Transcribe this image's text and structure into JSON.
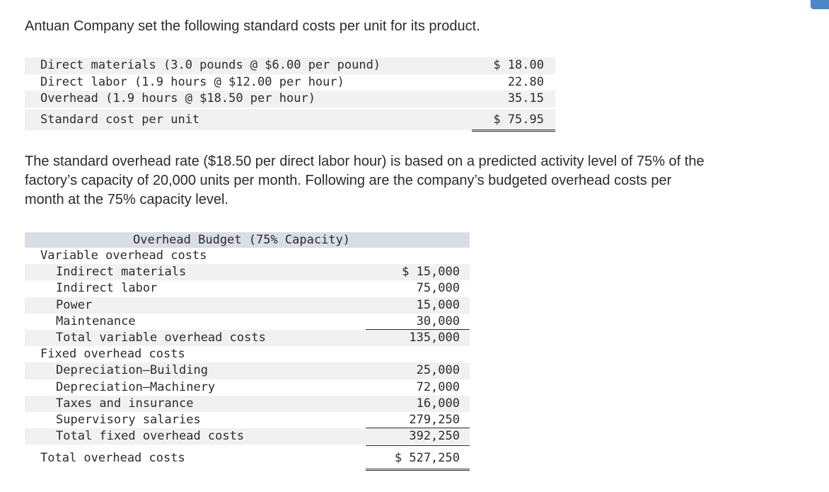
{
  "intro": "Antuan Company set the following standard costs per unit for its product.",
  "standard_costs": {
    "rows": [
      {
        "label": "Direct materials (3.0 pounds @ $6.00 per pound)",
        "amount": "$ 18.00"
      },
      {
        "label": "Direct labor (1.9 hours @ $12.00 per hour)",
        "amount": "22.80"
      },
      {
        "label": "Overhead (1.9 hours @ $18.50 per hour)",
        "amount": "35.15"
      }
    ],
    "total": {
      "label": "Standard cost per unit",
      "amount": "$ 75.95"
    }
  },
  "paragraph": {
    "line1": "The standard overhead rate ($18.50 per direct labor hour) is based on a predicted activity level of 75% of the",
    "line2": "factory’s capacity of 20,000 units per month. Following are the company’s budgeted overhead costs per",
    "line3": "month at the 75% capacity level."
  },
  "overhead_budget": {
    "title": "Overhead Budget (75% Capacity)",
    "variable_heading": "Variable overhead costs",
    "variable_items": [
      {
        "label": "Indirect materials",
        "amount": "$ 15,000"
      },
      {
        "label": "Indirect labor",
        "amount": "75,000"
      },
      {
        "label": "Power",
        "amount": "15,000"
      },
      {
        "label": "Maintenance",
        "amount": "30,000"
      }
    ],
    "variable_total": {
      "label": "Total variable overhead costs",
      "amount": "135,000"
    },
    "fixed_heading": "Fixed overhead costs",
    "fixed_items": [
      {
        "label": "Depreciation—Building",
        "amount": "25,000"
      },
      {
        "label": "Depreciation—Machinery",
        "amount": "72,000"
      },
      {
        "label": "Taxes and insurance",
        "amount": "16,000"
      },
      {
        "label": "Supervisory salaries",
        "amount": "279,250"
      }
    ],
    "fixed_total": {
      "label": "Total fixed overhead costs",
      "amount": "392,250"
    },
    "grand_total": {
      "label": "Total overhead costs",
      "amount": "$ 527,250"
    }
  },
  "colors": {
    "row_shade": "#f1f1f1",
    "header_shade": "#d9dde6",
    "corner_accent": "#4a88c7"
  }
}
